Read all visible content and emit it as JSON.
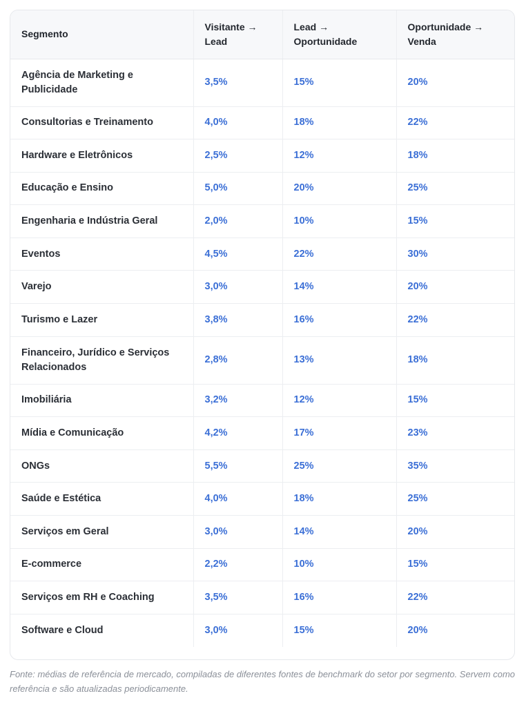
{
  "table": {
    "headers": [
      "Segmento",
      "Visitante → Lead",
      "Lead → Oportunidade",
      "Oportunidade → Venda"
    ],
    "rows": [
      [
        "Agência de Marketing e Publicidade",
        "3,5%",
        "15%",
        "20%"
      ],
      [
        "Consultorias e Treinamento",
        "4,0%",
        "18%",
        "22%"
      ],
      [
        "Hardware e Eletrônicos",
        "2,5%",
        "12%",
        "18%"
      ],
      [
        "Educação e Ensino",
        "5,0%",
        "20%",
        "25%"
      ],
      [
        "Engenharia e Indústria Geral",
        "2,0%",
        "10%",
        "15%"
      ],
      [
        "Eventos",
        "4,5%",
        "22%",
        "30%"
      ],
      [
        "Varejo",
        "3,0%",
        "14%",
        "20%"
      ],
      [
        "Turismo e Lazer",
        "3,8%",
        "16%",
        "22%"
      ],
      [
        "Financeiro, Jurídico e Serviços Relacionados",
        "2,8%",
        "13%",
        "18%"
      ],
      [
        "Imobiliária",
        "3,2%",
        "12%",
        "15%"
      ],
      [
        "Mídia e Comunicação",
        "4,2%",
        "17%",
        "23%"
      ],
      [
        "ONGs",
        "5,5%",
        "25%",
        "35%"
      ],
      [
        "Saúde e Estética",
        "4,0%",
        "18%",
        "25%"
      ],
      [
        "Serviços em Geral",
        "3,0%",
        "14%",
        "20%"
      ],
      [
        "E-commerce",
        "2,2%",
        "10%",
        "15%"
      ],
      [
        "Serviços em RH e Coaching",
        "3,5%",
        "16%",
        "22%"
      ],
      [
        "Software e Cloud",
        "3,0%",
        "15%",
        "20%"
      ]
    ]
  },
  "footnote": "Fonte: médias de referência de mercado, compiladas de diferentes fontes de benchmark do setor por segmento. Servem como referência e são atualizadas periodicamente.",
  "colors": {
    "value_text": "#3b6fd6",
    "header_background": "#f7f8fa",
    "border": "#e6e8ec"
  }
}
